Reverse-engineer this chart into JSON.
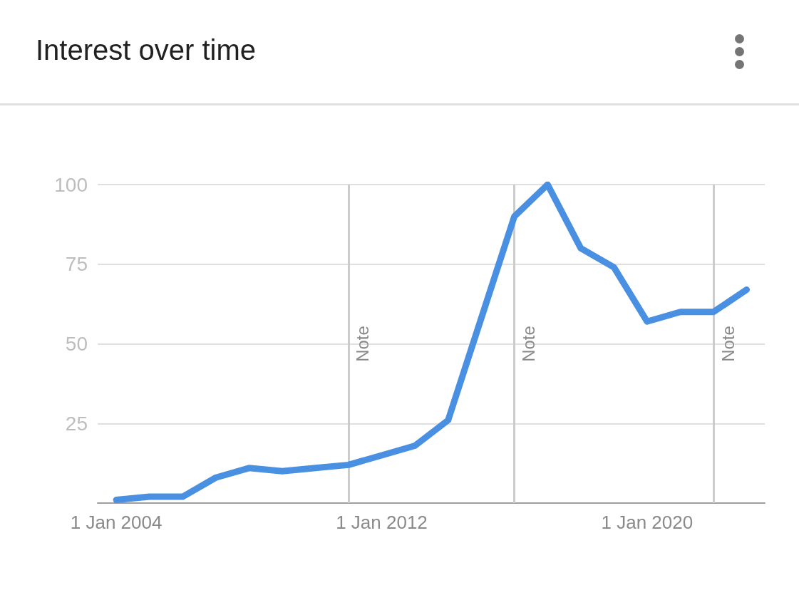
{
  "chart_data": {
    "type": "line",
    "title": "Interest over time",
    "x": [
      "2004",
      "2005",
      "2006",
      "2007",
      "2008",
      "2009",
      "2010",
      "2011",
      "2012",
      "2013",
      "2014",
      "2015",
      "2016",
      "2017",
      "2018",
      "2019",
      "2020",
      "2021",
      "2022",
      "2023"
    ],
    "series": [
      {
        "color": "#4a90e2",
        "values": [
          1,
          2,
          2,
          8,
          11,
          10,
          11,
          12,
          15,
          18,
          26,
          58,
          90,
          100,
          80,
          74,
          57,
          60,
          60,
          67
        ]
      }
    ],
    "xlim": [
      "2003-06-10",
      "2023-07-20"
    ],
    "xticks": [
      {
        "value": "2004-01-01",
        "label": "1 Jan 2004"
      },
      {
        "value": "2012-01-01",
        "label": "1 Jan 2012"
      },
      {
        "value": "2020-01-01",
        "label": "1 Jan 2020"
      }
    ],
    "ylim": [
      0,
      100
    ],
    "yticks": [
      25,
      50,
      75,
      100
    ],
    "ref_lines": [
      {
        "axis": "x",
        "value": "2011",
        "label": "Note",
        "color": "#cccccc"
      },
      {
        "axis": "x",
        "value": "2016",
        "label": "Note",
        "color": "#cccccc"
      },
      {
        "axis": "x",
        "value": "2022",
        "label": "Note",
        "color": "#cccccc"
      }
    ],
    "grid": "y",
    "marker": "none",
    "line_style": "solid"
  }
}
